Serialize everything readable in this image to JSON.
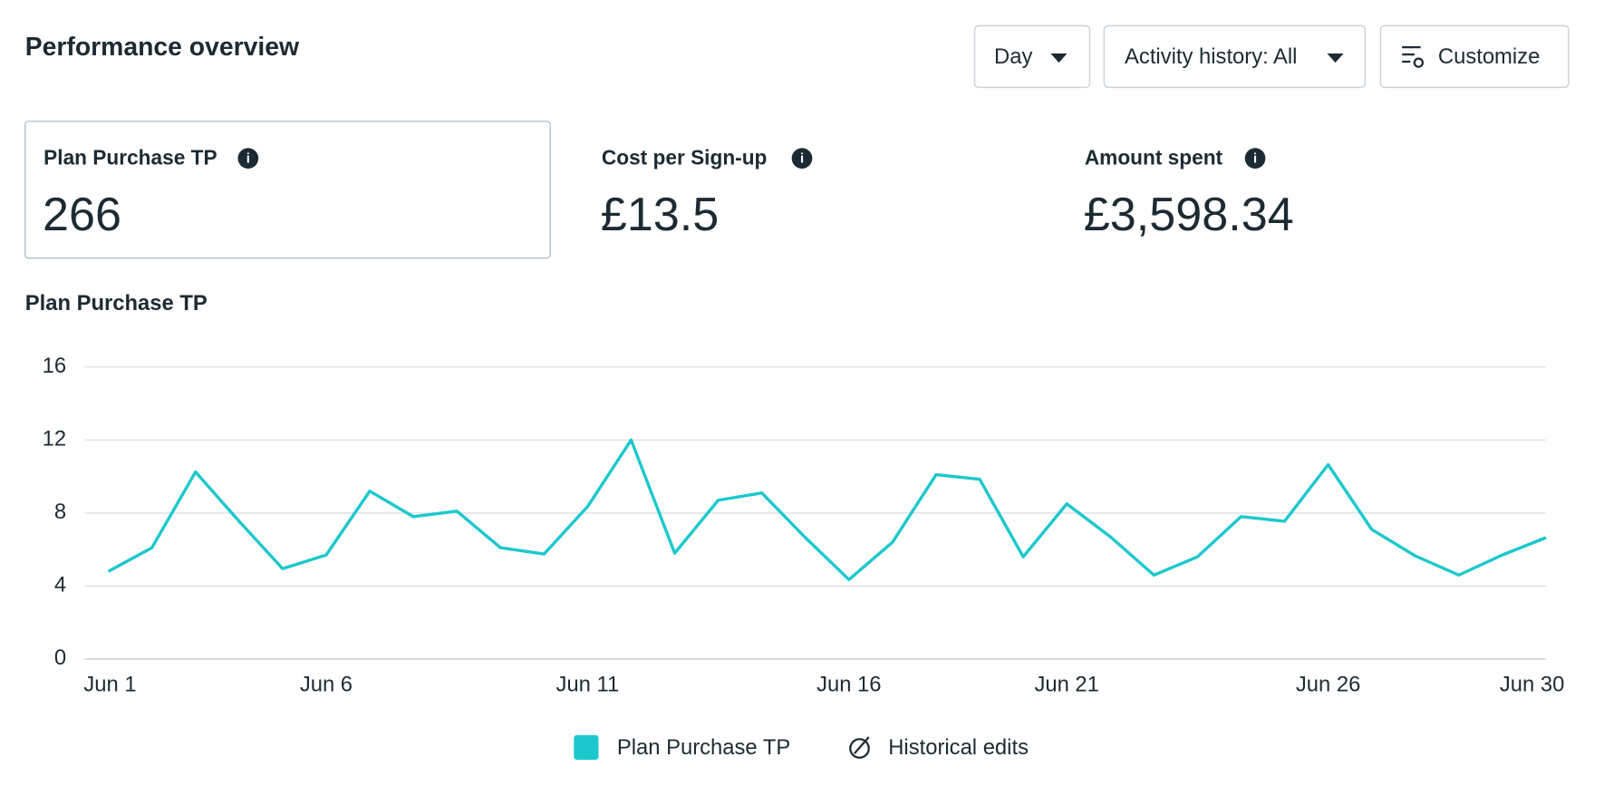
{
  "header": {
    "title": "Performance overview"
  },
  "controls": [
    {
      "label": "Day"
    },
    {
      "label": "Activity history: All"
    },
    {
      "label": "Customize"
    }
  ],
  "kpis": [
    {
      "label": "Plan Purchase TP",
      "value": "266"
    },
    {
      "label": "Cost per Sign-up",
      "value": "£13.5"
    },
    {
      "label": "Amount spent",
      "value": "£3,598.34"
    }
  ],
  "legend_extra": "Historical edits",
  "chart_data": {
    "type": "line",
    "title": "Plan Purchase TP",
    "categories": [
      "Jun 1",
      null,
      null,
      null,
      null,
      "Jun 6",
      null,
      null,
      null,
      null,
      null,
      "Jun 11",
      null,
      null,
      null,
      null,
      null,
      "Jun 16",
      null,
      null,
      null,
      null,
      "Jun 21",
      null,
      null,
      null,
      null,
      null,
      "Jun 26",
      null,
      null,
      null,
      null,
      "Jun 30"
    ],
    "series": [
      {
        "name": "Plan Purchase TP",
        "color": "#1cc8cc",
        "values": [
          4.8,
          6.1,
          10.25,
          7.55,
          4.95,
          5.7,
          9.2,
          7.8,
          8.1,
          6.1,
          5.75,
          8.35,
          12,
          5.8,
          8.7,
          9.1,
          6.65,
          4.35,
          6.4,
          10.1,
          9.85,
          5.6,
          8.5,
          6.7,
          4.6,
          5.6,
          7.8,
          7.55,
          10.65,
          7.1,
          5.65,
          4.6,
          5.7,
          6.65
        ]
      }
    ],
    "ylim": [
      0,
      16
    ],
    "yticks": [
      0,
      4,
      8,
      12,
      16
    ],
    "grid": true
  }
}
